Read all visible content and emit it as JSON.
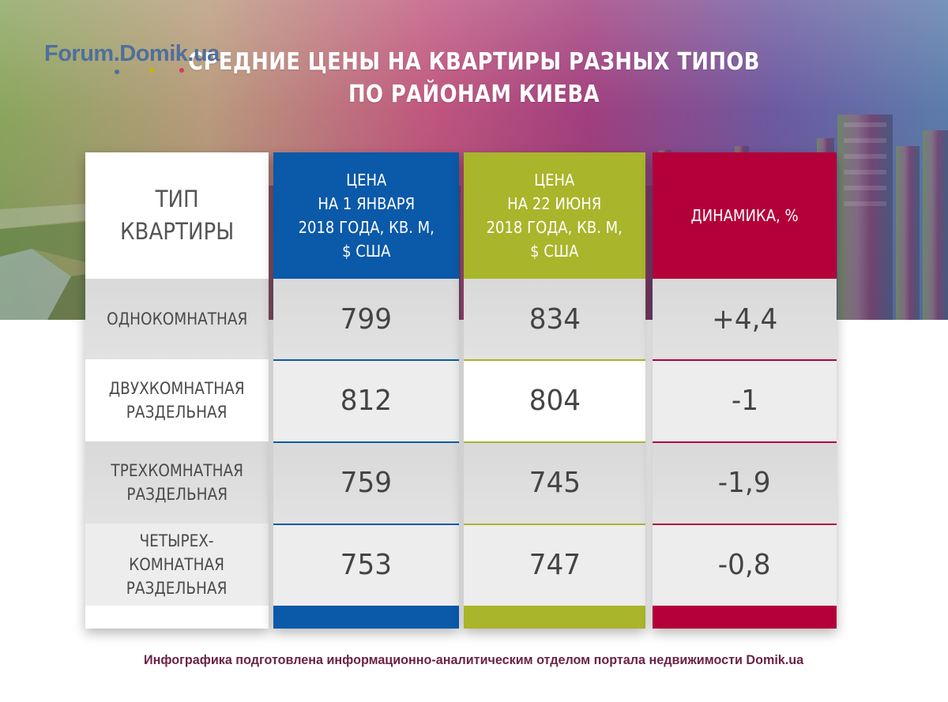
{
  "brand": {
    "logo": "Forum.Domik.ua",
    "colors": {
      "blue": "#0b59a9",
      "green": "#a9b52a",
      "red": "#b4003a",
      "text": "#444444",
      "credit": "#6b2248"
    }
  },
  "title": {
    "line1": "СРЕДНИЕ ЦЕНЫ НА КВАРТИРЫ РАЗНЫХ ТИПОВ",
    "line2": "ПО РАЙОНАМ КИЕВА"
  },
  "chart_data": {
    "type": "table",
    "columns": [
      "ТИП\nКВАРТИРЫ",
      "ЦЕНА\nНА 1 ЯНВАРЯ\n2018 ГОДА, КВ. М,\n$ США",
      "ЦЕНА\nНА 22 ИЮНЯ\n2018 ГОДА, КВ. М,\n$ США",
      "ДИНАМИКА, %"
    ],
    "rows": [
      {
        "type": "ОДНОКОМНАТНАЯ",
        "jan": "799",
        "jun": "834",
        "change": "+4,4"
      },
      {
        "type": "ДВУХКОМНАТНАЯ\nРАЗДЕЛЬНАЯ",
        "jan": "812",
        "jun": "804",
        "change": "-1"
      },
      {
        "type": "ТРЕХКОМНАТНАЯ\nРАЗДЕЛЬНАЯ",
        "jan": "759",
        "jun": "745",
        "change": "-1,9"
      },
      {
        "type": "ЧЕТЫРЕХ-\nКОМНАТНАЯ\nРАЗДЕЛЬНАЯ",
        "jan": "753",
        "jun": "747",
        "change": "-0,8"
      }
    ]
  },
  "credit": "Инфографика подготовлена информационно-аналитическим отделом портала недвижимости Domik.ua"
}
